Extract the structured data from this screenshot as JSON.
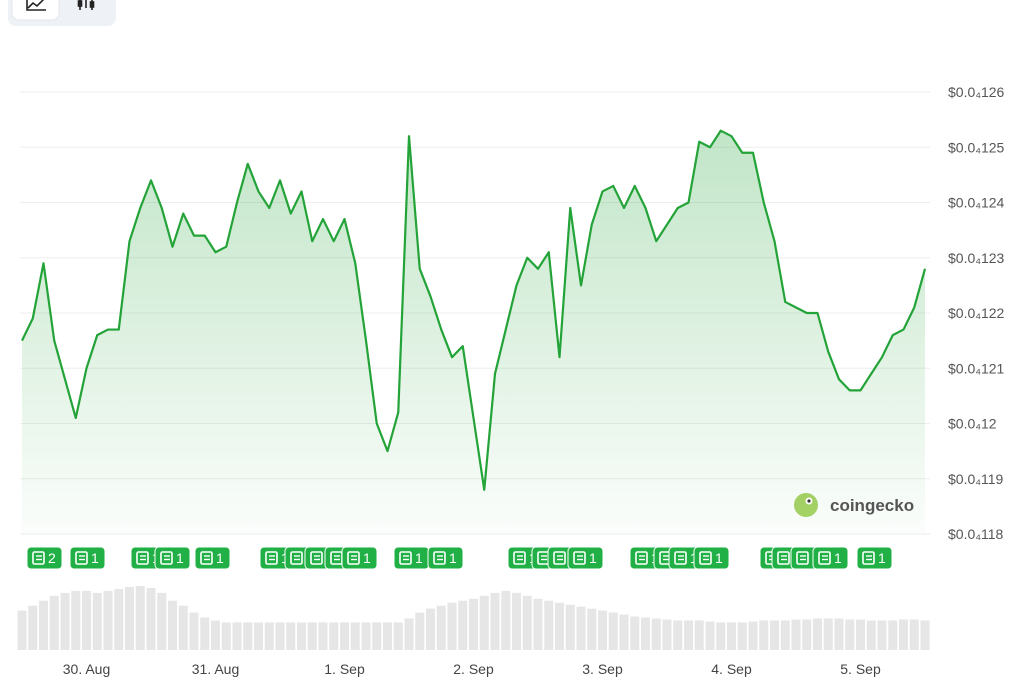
{
  "chart_data": {
    "type": "line",
    "watermark": "coingecko",
    "color": "#23a338",
    "grid": true,
    "categories": [
      null,
      null,
      null,
      null,
      null,
      null,
      "30. Aug",
      null,
      null,
      null,
      null,
      null,
      null,
      null,
      null,
      null,
      null,
      null,
      "31. Aug",
      null,
      null,
      null,
      null,
      null,
      null,
      null,
      null,
      null,
      null,
      null,
      "1. Sep",
      null,
      null,
      null,
      null,
      null,
      null,
      null,
      null,
      null,
      null,
      null,
      "2. Sep",
      null,
      null,
      null,
      null,
      null,
      null,
      null,
      null,
      null,
      null,
      null,
      "3. Sep",
      null,
      null,
      null,
      null,
      null,
      null,
      null,
      null,
      null,
      null,
      null,
      "4. Sep",
      null,
      null,
      null,
      null,
      null,
      null,
      null,
      null,
      null,
      null,
      null,
      "5. Sep",
      null,
      null,
      null,
      null,
      null,
      null
    ],
    "values": [
      1.215e-05,
      1.219e-05,
      1.229e-05,
      1.215e-05,
      1.208e-05,
      1.201e-05,
      1.21e-05,
      1.216e-05,
      1.217e-05,
      1.217e-05,
      1.233e-05,
      1.239e-05,
      1.244e-05,
      1.239e-05,
      1.232e-05,
      1.238e-05,
      1.234e-05,
      1.234e-05,
      1.231e-05,
      1.232e-05,
      1.24e-05,
      1.247e-05,
      1.242e-05,
      1.239e-05,
      1.244e-05,
      1.238e-05,
      1.242e-05,
      1.233e-05,
      1.237e-05,
      1.233e-05,
      1.237e-05,
      1.229e-05,
      1.215e-05,
      1.2e-05,
      1.195e-05,
      1.202e-05,
      1.252e-05,
      1.228e-05,
      1.223e-05,
      1.217e-05,
      1.212e-05,
      1.214e-05,
      1.201e-05,
      1.188e-05,
      1.209e-05,
      1.217e-05,
      1.225e-05,
      1.23e-05,
      1.228e-05,
      1.231e-05,
      1.212e-05,
      1.239e-05,
      1.225e-05,
      1.236e-05,
      1.242e-05,
      1.243e-05,
      1.239e-05,
      1.243e-05,
      1.239e-05,
      1.233e-05,
      1.236e-05,
      1.239e-05,
      1.24e-05,
      1.251e-05,
      1.25e-05,
      1.253e-05,
      1.252e-05,
      1.249e-05,
      1.249e-05,
      1.24e-05,
      1.233e-05,
      1.222e-05,
      1.221e-05,
      1.22e-05,
      1.22e-05,
      1.213e-05,
      1.208e-05,
      1.206e-05,
      1.206e-05,
      1.209e-05,
      1.212e-05,
      1.216e-05,
      1.217e-05,
      1.221e-05,
      1.228e-05
    ],
    "volume": [
      40,
      45,
      50,
      55,
      58,
      60,
      60,
      58,
      60,
      62,
      64,
      65,
      63,
      58,
      50,
      45,
      38,
      33,
      30,
      28,
      28,
      28,
      28,
      28,
      28,
      28,
      28,
      28,
      28,
      28,
      28,
      28,
      28,
      28,
      28,
      28,
      32,
      38,
      42,
      45,
      48,
      50,
      52,
      55,
      58,
      60,
      58,
      55,
      52,
      50,
      48,
      46,
      44,
      42,
      40,
      38,
      36,
      34,
      33,
      32,
      31,
      30,
      30,
      30,
      29,
      28,
      28,
      28,
      29,
      30,
      30,
      30,
      31,
      31,
      32,
      32,
      32,
      31,
      31,
      30,
      30,
      30,
      31,
      31,
      30
    ],
    "ylim": [
      1.18e-05,
      1.26e-05
    ],
    "yticks": [
      {
        "value": 1.26e-05,
        "label": "$0.0₄126"
      },
      {
        "value": 1.25e-05,
        "label": "$0.0₄125"
      },
      {
        "value": 1.24e-05,
        "label": "$0.0₄124"
      },
      {
        "value": 1.23e-05,
        "label": "$0.0₄123"
      },
      {
        "value": 1.22e-05,
        "label": "$0.0₄122"
      },
      {
        "value": 1.21e-05,
        "label": "$0.0₄121"
      },
      {
        "value": 1.2e-05,
        "label": "$0.0₄12"
      },
      {
        "value": 1.19e-05,
        "label": "$0.0₄119"
      },
      {
        "value": 1.18e-05,
        "label": "$0.0₄118"
      }
    ],
    "news_markers": [
      "2",
      "1",
      "1",
      "1",
      "1",
      "1",
      "1",
      "1",
      "1",
      "1",
      "1",
      "1",
      "1",
      "1",
      "1",
      "1",
      "1",
      "1",
      "1",
      "1",
      "1",
      "1",
      "1",
      "1",
      "1"
    ]
  }
}
